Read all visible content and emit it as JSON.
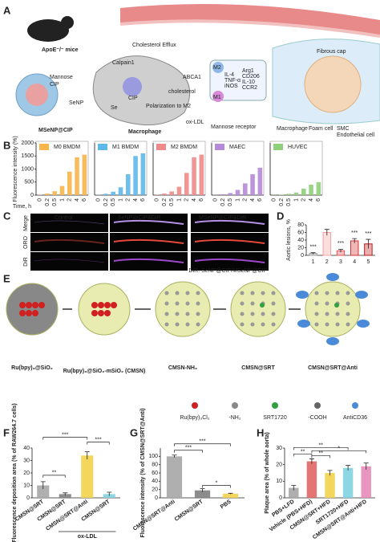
{
  "panel_letters": [
    "A",
    "B",
    "C",
    "D",
    "E",
    "F",
    "G",
    "H"
  ],
  "diagram_a": {
    "texts": [
      "ApoE⁻/⁻ mice",
      "Cholesterol Efflux",
      "Fibrous cap",
      "Mannose",
      "CIP",
      "SeNP",
      "MSeNP@CIP",
      "Calpain1",
      "ABCA1",
      "CIP",
      "cholesterol",
      "Se",
      "Polarization to M2",
      "Macrophage",
      "ox-LDL",
      "M2",
      "M1",
      "IL-4",
      "TNF-α",
      "iNOS",
      "Arg1",
      "CD206",
      "IL-10",
      "CCR2",
      "Mannose receptor",
      "Macrophage",
      "Foam cell",
      "SMC",
      "Endothelial cell"
    ]
  },
  "panel_c": {
    "columns": [
      "Control",
      "SeNP@CIP&DiR",
      "MSeNP@CIP&DiR"
    ],
    "rows": [
      "Merge",
      "ORO",
      "DiR"
    ],
    "note": "DiR: SeNP@CIP/MSeNP@CIP"
  },
  "diagram_e": {
    "steps": [
      "Ru(bpy)₃@SiO₂",
      "Ru(bpy)₃@SiO₂-mSiO₂ (CMSN)",
      "CMSN-NH₂",
      "CMSN@SRT",
      "CMSN@SRT@Anti"
    ],
    "legend": [
      "Ru(bpy)₃Cl₂",
      "-NH₂",
      "SRT1720",
      "-COOH",
      "AntiCD36"
    ]
  },
  "chart_data": [
    {
      "type": "bar",
      "title": "M0 BMDM",
      "ylabel": "Fluorescence intensity (%)",
      "xlabel": "Time, h",
      "categories": [
        "0",
        "0.2",
        "0.5",
        "1",
        "2",
        "4",
        "6"
      ],
      "values": [
        10,
        60,
        150,
        350,
        900,
        1450,
        1550
      ],
      "color": "#f7b54a",
      "ylim": [
        0,
        2000
      ],
      "yticks": [
        0,
        500,
        1000,
        1500,
        2000
      ]
    },
    {
      "type": "bar",
      "title": "M1 BMDM",
      "categories": [
        "0",
        "0.2",
        "0.5",
        "1",
        "2",
        "4",
        "6"
      ],
      "values": [
        10,
        50,
        130,
        300,
        800,
        1500,
        1600
      ],
      "color": "#5fb8ea",
      "ylim": [
        0,
        2000
      ]
    },
    {
      "type": "bar",
      "title": "M2 BMDM",
      "categories": [
        "0",
        "0.2",
        "0.5",
        "1",
        "2",
        "4",
        "6"
      ],
      "values": [
        10,
        60,
        140,
        320,
        850,
        1450,
        1550
      ],
      "color": "#f08a8a",
      "ylim": [
        0,
        2000
      ]
    },
    {
      "type": "bar",
      "title": "MAEC",
      "categories": [
        "0",
        "0.2",
        "0.5",
        "1",
        "2",
        "4",
        "6"
      ],
      "values": [
        5,
        30,
        80,
        200,
        450,
        800,
        1050
      ],
      "color": "#b58ad8",
      "ylim": [
        0,
        2000
      ]
    },
    {
      "type": "bar",
      "title": "HUVEC",
      "categories": [
        "0",
        "0.2",
        "0.5",
        "1",
        "2",
        "4",
        "6"
      ],
      "values": [
        5,
        20,
        50,
        100,
        250,
        400,
        500
      ],
      "color": "#8fd07a",
      "ylim": [
        0,
        2000
      ]
    },
    {
      "type": "bar",
      "ylabel": "Aortic lesions, %",
      "categories": [
        "1",
        "2",
        "3",
        "4",
        "5"
      ],
      "values": [
        5,
        60,
        12,
        38,
        30
      ],
      "errors": [
        2,
        8,
        4,
        6,
        12
      ],
      "colors": [
        "#9e9e9e",
        "#f4a0a0",
        "#e05050",
        "#d83030",
        "#c01818"
      ],
      "ylim": [
        0,
        80
      ],
      "yticks": [
        0,
        20,
        40,
        60,
        80
      ],
      "annotations": [
        "***",
        "***",
        "***",
        "***"
      ]
    },
    {
      "type": "bar",
      "ylabel": "Fluorescence deposition area (% of RAW264.7 cells)",
      "categories": [
        "CMSN@SRT",
        "CMSN@SRT",
        "CMSN@SRT@Anti",
        "CMSN@SRT"
      ],
      "values": [
        10,
        3,
        34,
        3
      ],
      "errors": [
        3,
        1,
        3,
        1.5
      ],
      "colors": [
        "#a6a6a6",
        "#7f7f7f",
        "#f2d24b",
        "#7fd3e0"
      ],
      "ylim": [
        0,
        40
      ],
      "yticks": [
        0,
        10,
        20,
        30,
        40
      ],
      "group_label": "ox-LDL",
      "annotations": [
        "**",
        "***",
        "***"
      ]
    },
    {
      "type": "bar",
      "ylabel": "Fluorescence intensity (% of CMSN@SRT@Anti)",
      "categories": [
        "CMSN@SRT@Anti",
        "CMSN@SRT",
        "PBS"
      ],
      "values": [
        100,
        18,
        10
      ],
      "errors": [
        3,
        4,
        1
      ],
      "colors": [
        "#a6a6a6",
        "#7f7f7f",
        "#f2d24b"
      ],
      "ylim": [
        0,
        120
      ],
      "yticks": [
        0,
        20,
        40,
        60,
        80,
        100
      ],
      "annotations": [
        "***",
        "***",
        "*"
      ]
    },
    {
      "type": "bar",
      "ylabel": "Plaque area (% of whole aorta)",
      "categories": [
        "PBS+LFD",
        "Vehicle (PBS+HFD)",
        "CMSN@SRT+HFD",
        "SRT1720+HFD",
        "CMSN@SRT@Anti+HFD"
      ],
      "values": [
        6,
        22,
        15,
        18,
        19
      ],
      "errors": [
        1.5,
        1.5,
        1.5,
        1.5,
        2
      ],
      "colors": [
        "#a6a6a6",
        "#e06666",
        "#f2d24b",
        "#7fd3e0",
        "#e68ab8"
      ],
      "ylim": [
        0,
        30
      ],
      "yticks": [
        0,
        10,
        20,
        30
      ],
      "annotations": [
        "**",
        "**",
        "**",
        "*"
      ]
    }
  ]
}
